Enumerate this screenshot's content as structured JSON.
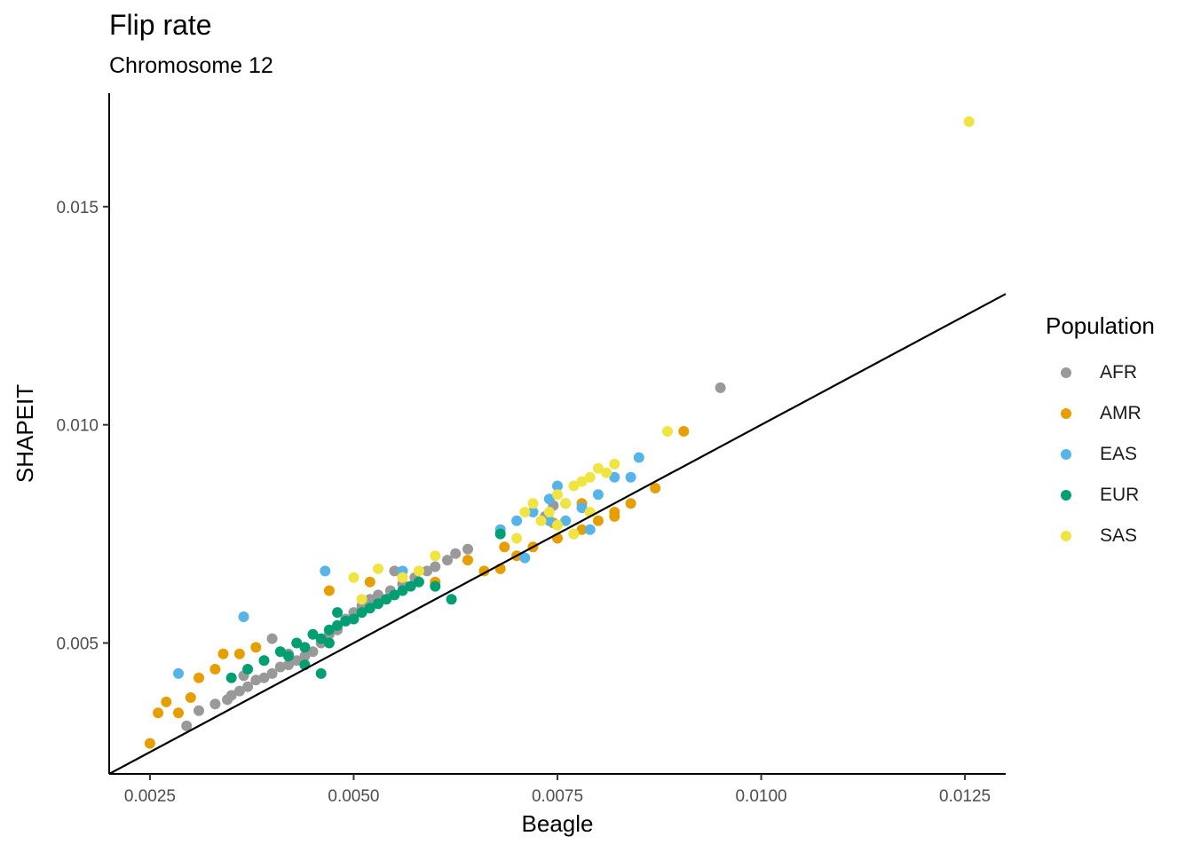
{
  "chart_data": {
    "type": "scatter",
    "title": "Flip rate",
    "subtitle": "Chromosome 12",
    "xlabel": "Beagle",
    "ylabel": "SHAPEIT",
    "xlim": [
      0.002,
      0.013
    ],
    "ylim": [
      0.002,
      0.0176
    ],
    "x_ticks": [
      0.0025,
      0.005,
      0.0075,
      0.01,
      0.0125
    ],
    "x_tick_labels": [
      "0.0025",
      "0.0050",
      "0.0075",
      "0.0100",
      "0.0125"
    ],
    "y_ticks": [
      0.005,
      0.01,
      0.015
    ],
    "y_tick_labels": [
      "0.005",
      "0.010",
      "0.015"
    ],
    "reference_line": {
      "slope": 1,
      "intercept": 0
    },
    "grid": false,
    "legend": {
      "title": "Population",
      "position": "right"
    },
    "series": [
      {
        "name": "AFR",
        "color": "#999999",
        "points": [
          [
            0.00295,
            0.0031
          ],
          [
            0.0031,
            0.00345
          ],
          [
            0.0033,
            0.0036
          ],
          [
            0.00345,
            0.0037
          ],
          [
            0.0036,
            0.0039
          ],
          [
            0.0037,
            0.004
          ],
          [
            0.0038,
            0.00415
          ],
          [
            0.0039,
            0.0042
          ],
          [
            0.004,
            0.0043
          ],
          [
            0.0041,
            0.00445
          ],
          [
            0.0042,
            0.0045
          ],
          [
            0.0043,
            0.0046
          ],
          [
            0.0044,
            0.0047
          ],
          [
            0.0045,
            0.0048
          ],
          [
            0.0046,
            0.005
          ],
          [
            0.0047,
            0.0052
          ],
          [
            0.0048,
            0.0053
          ],
          [
            0.0049,
            0.00555
          ],
          [
            0.005,
            0.0057
          ],
          [
            0.0051,
            0.00585
          ],
          [
            0.0052,
            0.006
          ],
          [
            0.0053,
            0.0061
          ],
          [
            0.00545,
            0.0062
          ],
          [
            0.0056,
            0.00635
          ],
          [
            0.00575,
            0.0065
          ],
          [
            0.0059,
            0.00665
          ],
          [
            0.006,
            0.00675
          ],
          [
            0.00615,
            0.0069
          ],
          [
            0.00625,
            0.00705
          ],
          [
            0.0064,
            0.00715
          ],
          [
            0.0055,
            0.00665
          ],
          [
            0.004,
            0.0051
          ],
          [
            0.0035,
            0.0038
          ],
          [
            0.0042,
            0.00475
          ],
          [
            0.00365,
            0.00425
          ],
          [
            0.00735,
            0.0079
          ],
          [
            0.00745,
            0.00815
          ],
          [
            0.0095,
            0.01085
          ]
        ]
      },
      {
        "name": "AMR",
        "color": "#E69F00",
        "points": [
          [
            0.0025,
            0.0027
          ],
          [
            0.0026,
            0.0034
          ],
          [
            0.0027,
            0.00365
          ],
          [
            0.00285,
            0.0034
          ],
          [
            0.003,
            0.00375
          ],
          [
            0.0031,
            0.0042
          ],
          [
            0.0033,
            0.0044
          ],
          [
            0.0034,
            0.00475
          ],
          [
            0.0036,
            0.00475
          ],
          [
            0.0038,
            0.0049
          ],
          [
            0.0047,
            0.0062
          ],
          [
            0.0052,
            0.0064
          ],
          [
            0.0056,
            0.0065
          ],
          [
            0.006,
            0.0064
          ],
          [
            0.0064,
            0.0069
          ],
          [
            0.0066,
            0.00665
          ],
          [
            0.007,
            0.007
          ],
          [
            0.0072,
            0.0072
          ],
          [
            0.0075,
            0.0074
          ],
          [
            0.0078,
            0.0076
          ],
          [
            0.008,
            0.0078
          ],
          [
            0.0082,
            0.008
          ],
          [
            0.0084,
            0.0082
          ],
          [
            0.0087,
            0.00855
          ],
          [
            0.00905,
            0.00985
          ],
          [
            0.00685,
            0.0072
          ],
          [
            0.0078,
            0.0082
          ],
          [
            0.00745,
            0.00775
          ],
          [
            0.0068,
            0.0067
          ],
          [
            0.0082,
            0.0079
          ]
        ]
      },
      {
        "name": "EAS",
        "color": "#56B4E9",
        "points": [
          [
            0.00285,
            0.0043
          ],
          [
            0.00365,
            0.0056
          ],
          [
            0.00465,
            0.00665
          ],
          [
            0.0056,
            0.00665
          ],
          [
            0.0068,
            0.0076
          ],
          [
            0.007,
            0.0078
          ],
          [
            0.0072,
            0.008
          ],
          [
            0.0074,
            0.0083
          ],
          [
            0.0075,
            0.0086
          ],
          [
            0.0076,
            0.0082
          ],
          [
            0.0077,
            0.0075
          ],
          [
            0.0079,
            0.0076
          ],
          [
            0.008,
            0.0084
          ],
          [
            0.0082,
            0.0088
          ],
          [
            0.0084,
            0.0088
          ],
          [
            0.0085,
            0.00925
          ],
          [
            0.0071,
            0.00695
          ],
          [
            0.0074,
            0.0078
          ],
          [
            0.0076,
            0.0078
          ],
          [
            0.0078,
            0.0081
          ]
        ]
      },
      {
        "name": "EUR",
        "color": "#009E73",
        "points": [
          [
            0.0035,
            0.0042
          ],
          [
            0.0037,
            0.0044
          ],
          [
            0.0039,
            0.0046
          ],
          [
            0.0041,
            0.0048
          ],
          [
            0.0042,
            0.0047
          ],
          [
            0.0043,
            0.005
          ],
          [
            0.0044,
            0.0049
          ],
          [
            0.0045,
            0.0052
          ],
          [
            0.0046,
            0.0051
          ],
          [
            0.0047,
            0.0053
          ],
          [
            0.0048,
            0.0054
          ],
          [
            0.0049,
            0.0055
          ],
          [
            0.005,
            0.00555
          ],
          [
            0.0051,
            0.0057
          ],
          [
            0.0052,
            0.0058
          ],
          [
            0.0053,
            0.0059
          ],
          [
            0.0054,
            0.006
          ],
          [
            0.0055,
            0.0061
          ],
          [
            0.0056,
            0.0062
          ],
          [
            0.0057,
            0.0063
          ],
          [
            0.0058,
            0.0064
          ],
          [
            0.006,
            0.0063
          ],
          [
            0.0062,
            0.006
          ],
          [
            0.0068,
            0.0075
          ],
          [
            0.0046,
            0.0043
          ],
          [
            0.0048,
            0.0057
          ],
          [
            0.0044,
            0.0045
          ],
          [
            0.0047,
            0.005
          ]
        ]
      },
      {
        "name": "SAS",
        "color": "#F0E442",
        "points": [
          [
            0.005,
            0.0065
          ],
          [
            0.0053,
            0.0067
          ],
          [
            0.0051,
            0.006
          ],
          [
            0.0056,
            0.0065
          ],
          [
            0.0058,
            0.00665
          ],
          [
            0.006,
            0.007
          ],
          [
            0.007,
            0.0074
          ],
          [
            0.0071,
            0.008
          ],
          [
            0.0072,
            0.0082
          ],
          [
            0.0073,
            0.0078
          ],
          [
            0.0074,
            0.008
          ],
          [
            0.0075,
            0.0084
          ],
          [
            0.0076,
            0.0082
          ],
          [
            0.0077,
            0.0086
          ],
          [
            0.0078,
            0.0087
          ],
          [
            0.0079,
            0.0088
          ],
          [
            0.008,
            0.009
          ],
          [
            0.0081,
            0.0089
          ],
          [
            0.0082,
            0.0091
          ],
          [
            0.0075,
            0.0077
          ],
          [
            0.0077,
            0.0075
          ],
          [
            0.0079,
            0.008
          ],
          [
            0.00885,
            0.00985
          ],
          [
            0.01255,
            0.01695
          ]
        ]
      }
    ]
  }
}
